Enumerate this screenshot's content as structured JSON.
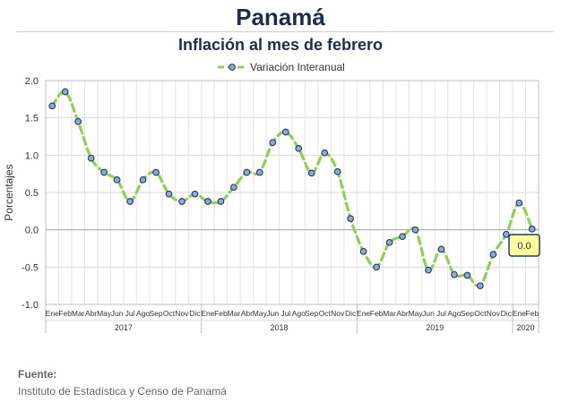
{
  "page": {
    "title": "Panamá",
    "subtitle": "Inflación al mes de febrero",
    "source_label": "Fuente:",
    "source_text": "Instituto de Estadística y Censo de Panamá"
  },
  "chart_data": {
    "type": "line",
    "ylabel": "Porcentajes",
    "ylim": [
      -1.0,
      2.0
    ],
    "yticks": [
      -1.0,
      -0.5,
      0.0,
      0.5,
      1.0,
      1.5,
      2.0
    ],
    "ytick_labels": [
      "-1.0",
      "-0.5",
      "0.0",
      "0.5",
      "1.0",
      "1.5",
      "2.0"
    ],
    "legend_position": "top-center",
    "grid": true,
    "categories": [
      "Ene",
      "Feb",
      "Mar",
      "Abr",
      "May",
      "Jun",
      "Jul",
      "Ago",
      "Sep",
      "Oct",
      "Nov",
      "Dic",
      "Ene",
      "Feb",
      "Mar",
      "Abr",
      "May",
      "Jun",
      "Jul",
      "Ago",
      "Sep",
      "Oct",
      "Nov",
      "Dic",
      "Ene",
      "Feb",
      "Mar",
      "Abr",
      "May",
      "Jun",
      "Jul",
      "Ago",
      "Sep",
      "Oct",
      "Nov",
      "Dic",
      "Ene",
      "Feb"
    ],
    "year_groups": [
      {
        "label": "2017",
        "count": 12
      },
      {
        "label": "2018",
        "count": 12
      },
      {
        "label": "2019",
        "count": 12
      },
      {
        "label": "2020",
        "count": 2
      }
    ],
    "series": [
      {
        "name": "Variación Interanual",
        "color": "#92d050",
        "marker_fill": "#8ea9db",
        "marker_edge": "#1f3864",
        "values": [
          1.66,
          1.85,
          1.45,
          0.96,
          0.77,
          0.67,
          0.38,
          0.67,
          0.77,
          0.48,
          0.38,
          0.48,
          0.38,
          0.38,
          0.57,
          0.77,
          0.77,
          1.17,
          1.31,
          1.09,
          0.76,
          1.03,
          0.78,
          0.15,
          -0.29,
          -0.5,
          -0.17,
          -0.09,
          0.0,
          -0.54,
          -0.26,
          -0.6,
          -0.61,
          -0.75,
          -0.33,
          -0.06,
          0.36,
          0.01
        ]
      }
    ],
    "annotation": {
      "text": "0.0",
      "index": 37,
      "fill": "#ffff99",
      "border": "#1f3864"
    }
  }
}
